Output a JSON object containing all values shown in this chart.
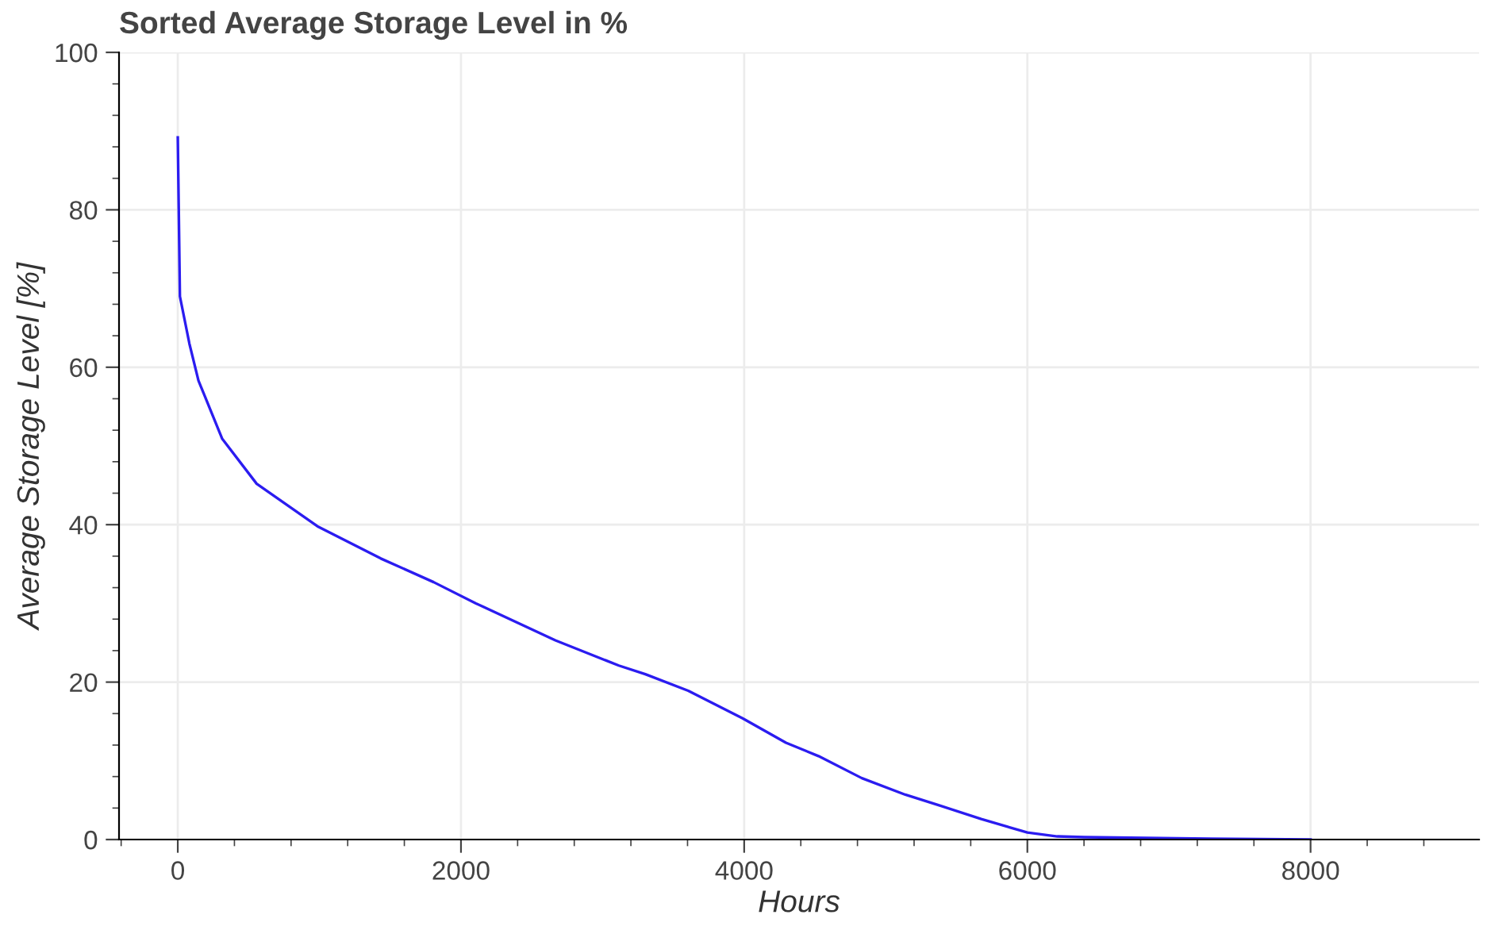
{
  "chart_data": {
    "type": "line",
    "title": "Sorted Average Storage Level in %",
    "xlabel": "Hours",
    "ylabel": "Average Storage Level [%]",
    "x": [
      0,
      15,
      82,
      146,
      314,
      557,
      986,
      1434,
      1807,
      2106,
      2667,
      3115,
      3302,
      3605,
      3989,
      4295,
      4525,
      4831,
      5138,
      5368,
      5674,
      6000,
      6211,
      6402,
      7054,
      8000
    ],
    "series": [
      {
        "color": "#2b1cf0",
        "values": [
          89.2,
          69.0,
          63.0,
          58.3,
          50.9,
          45.2,
          39.8,
          35.7,
          32.7,
          30.0,
          25.3,
          22.1,
          21.0,
          18.9,
          15.4,
          12.3,
          10.6,
          7.8,
          5.7,
          4.4,
          2.6,
          0.9,
          0.4,
          0.3,
          0.15,
          0
        ]
      }
    ],
    "xlim": [
      -415,
      9190
    ],
    "ylim": [
      0,
      100
    ],
    "xticks": [
      0,
      2000,
      4000,
      6000,
      8000
    ],
    "yticks": [
      0,
      20,
      40,
      60,
      80,
      100
    ],
    "grid": true,
    "legend": false
  }
}
